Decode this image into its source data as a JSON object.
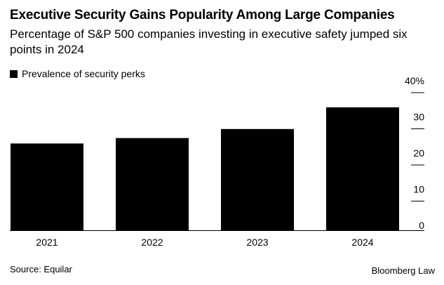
{
  "header": {
    "title": "Executive Security Gains Popularity Among Large Companies",
    "subtitle": "Percentage of S&P 500 companies investing in executive safety jumped six points in 2024"
  },
  "legend": {
    "label": "Prevalence of security perks"
  },
  "footer": {
    "source": "Source: Equilar",
    "brand": "Bloomberg Law"
  },
  "colors": {
    "bar": "#000000",
    "text": "#000000",
    "background": "#ffffff"
  },
  "chart_data": {
    "type": "bar",
    "categories": [
      "2021",
      "2022",
      "2023",
      "2024"
    ],
    "values": [
      24,
      25.5,
      28,
      34
    ],
    "series": [
      {
        "name": "Prevalence of security perks",
        "values": [
          24,
          25.5,
          28,
          34
        ]
      }
    ],
    "ylim": [
      0,
      40
    ],
    "yticks": [
      0,
      10,
      20,
      30,
      40
    ],
    "ytick_labels": [
      "0",
      "10",
      "20",
      "30",
      "40%"
    ],
    "y_axis_side": "right",
    "grid": false,
    "legend_position": "top-left"
  }
}
